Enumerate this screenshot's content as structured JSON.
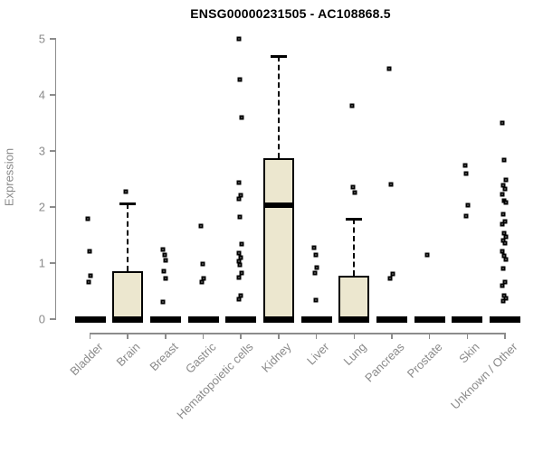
{
  "title": "ENSG00000231505 - AC108868.5",
  "colors": {
    "axis": "#8c8c8c",
    "muted_text": "#8a8a8a",
    "box_fill": "#ece7cf",
    "data": "#000000",
    "background": "#ffffff"
  },
  "chart_data": {
    "type": "boxplot",
    "title": "ENSG00000231505 - AC108868.5",
    "xlabel": "",
    "ylabel": "Expression",
    "ylim": [
      0,
      5
    ],
    "yticks": [
      0,
      1,
      2,
      3,
      4,
      5
    ],
    "grid": false,
    "legend": "none",
    "categories": [
      "Bladder",
      "Brain",
      "Breast",
      "Gastric",
      "Hematopoietic cells",
      "Kidney",
      "Liver",
      "Lung",
      "Pancreas",
      "Prostate",
      "Skin",
      "Unknown / Other"
    ],
    "series": [
      {
        "name": "Bladder",
        "q1": 0,
        "median": 0,
        "q3": 0,
        "whisker_low": 0,
        "whisker_high": 0,
        "outliers": [
          1.79,
          1.21,
          0.77,
          0.66
        ]
      },
      {
        "name": "Brain",
        "q1": 0,
        "median": 0,
        "q3": 0.85,
        "whisker_low": 0,
        "whisker_high": 2.06,
        "outliers": [
          2.28
        ]
      },
      {
        "name": "Breast",
        "q1": 0,
        "median": 0,
        "q3": 0,
        "whisker_low": 0,
        "whisker_high": 0,
        "outliers": [
          1.24,
          1.15,
          1.05,
          0.85,
          0.72,
          0.3
        ]
      },
      {
        "name": "Gastric",
        "q1": 0,
        "median": 0,
        "q3": 0,
        "whisker_low": 0,
        "whisker_high": 0,
        "outliers": [
          1.66,
          0.98,
          0.72,
          0.66
        ]
      },
      {
        "name": "Hematopoietic cells",
        "q1": 0,
        "median": 0,
        "q3": 0,
        "whisker_low": 0,
        "whisker_high": 0,
        "outliers": [
          5.0,
          4.27,
          3.6,
          2.44,
          2.21,
          2.15,
          1.82,
          1.34,
          1.18,
          1.1,
          1.03,
          0.96,
          0.83,
          0.75,
          0.42,
          0.35
        ]
      },
      {
        "name": "Kidney",
        "q1": 0,
        "median": 2.03,
        "q3": 2.87,
        "whisker_low": 0,
        "whisker_high": 4.69,
        "outliers": []
      },
      {
        "name": "Liver",
        "q1": 0,
        "median": 0,
        "q3": 0,
        "whisker_low": 0,
        "whisker_high": 0,
        "outliers": [
          1.27,
          1.15,
          0.92,
          0.83,
          0.34
        ]
      },
      {
        "name": "Lung",
        "q1": 0,
        "median": 0,
        "q3": 0.78,
        "whisker_low": 0,
        "whisker_high": 1.79,
        "outliers": [
          3.81,
          2.35,
          2.26
        ]
      },
      {
        "name": "Pancreas",
        "q1": 0,
        "median": 0,
        "q3": 0,
        "whisker_low": 0,
        "whisker_high": 0,
        "outliers": [
          4.47,
          2.4,
          0.81,
          0.73
        ]
      },
      {
        "name": "Prostate",
        "q1": 0,
        "median": 0,
        "q3": 0,
        "whisker_low": 0,
        "whisker_high": 0,
        "outliers": [
          1.15
        ]
      },
      {
        "name": "Skin",
        "q1": 0,
        "median": 0,
        "q3": 0,
        "whisker_low": 0,
        "whisker_high": 0,
        "outliers": [
          2.74,
          2.6,
          2.03,
          1.84
        ]
      },
      {
        "name": "Unknown / Other",
        "q1": 0,
        "median": 0,
        "q3": 0,
        "whisker_low": 0,
        "whisker_high": 0,
        "outliers": [
          3.5,
          2.84,
          2.48,
          2.38,
          2.33,
          2.23,
          2.12,
          2.08,
          1.87,
          1.74,
          1.69,
          1.53,
          1.46,
          1.4,
          1.35,
          1.21,
          1.13,
          1.06,
          0.9,
          0.66,
          0.6,
          0.42,
          0.37,
          0.32
        ]
      }
    ]
  }
}
